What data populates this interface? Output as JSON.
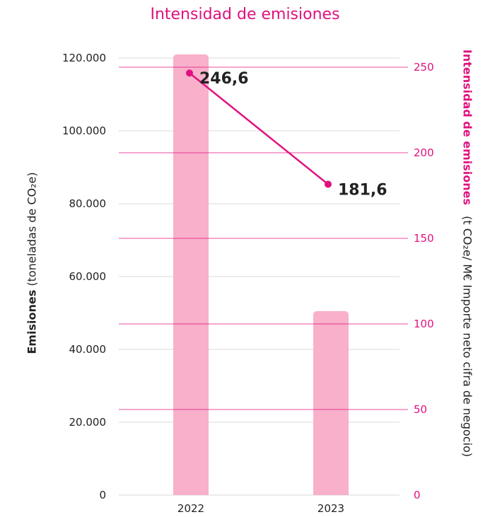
{
  "colors": {
    "accent": "#e0117f",
    "bar": "#f8b0cb",
    "grid_left": "#d9d9d9",
    "text": "#222222"
  },
  "chart_data": {
    "type": "bar",
    "title": "Intensidad de emisiones",
    "categories": [
      "2022",
      "2023"
    ],
    "series": [
      {
        "axis": "left",
        "type": "bar",
        "values": [
          121000,
          50500
        ]
      },
      {
        "axis": "right",
        "type": "line",
        "values": [
          246.6,
          181.6
        ],
        "labels": [
          "246,6",
          "181,6"
        ]
      }
    ],
    "y_left": {
      "title_bold": "Emisiones",
      "title_rest": "(toneladas de CO₂e)",
      "ylim": [
        0,
        120000
      ],
      "ticks": [
        0,
        20000,
        40000,
        60000,
        80000,
        100000,
        120000
      ],
      "tick_labels": [
        "0",
        "20.000",
        "40.000",
        "60.000",
        "80.000",
        "100.000",
        "120.000"
      ]
    },
    "y_right": {
      "title_bold": "Intensidad de emisiones",
      "title_rest": "(t CO₂e/ M€ Importe neto cifra de negocio)",
      "ylim": [
        0,
        250
      ],
      "ticks": [
        0,
        50,
        100,
        150,
        200,
        250
      ],
      "tick_labels": [
        "0",
        "50",
        "100",
        "150",
        "200",
        "250"
      ]
    },
    "grid": true,
    "legend": "none"
  }
}
